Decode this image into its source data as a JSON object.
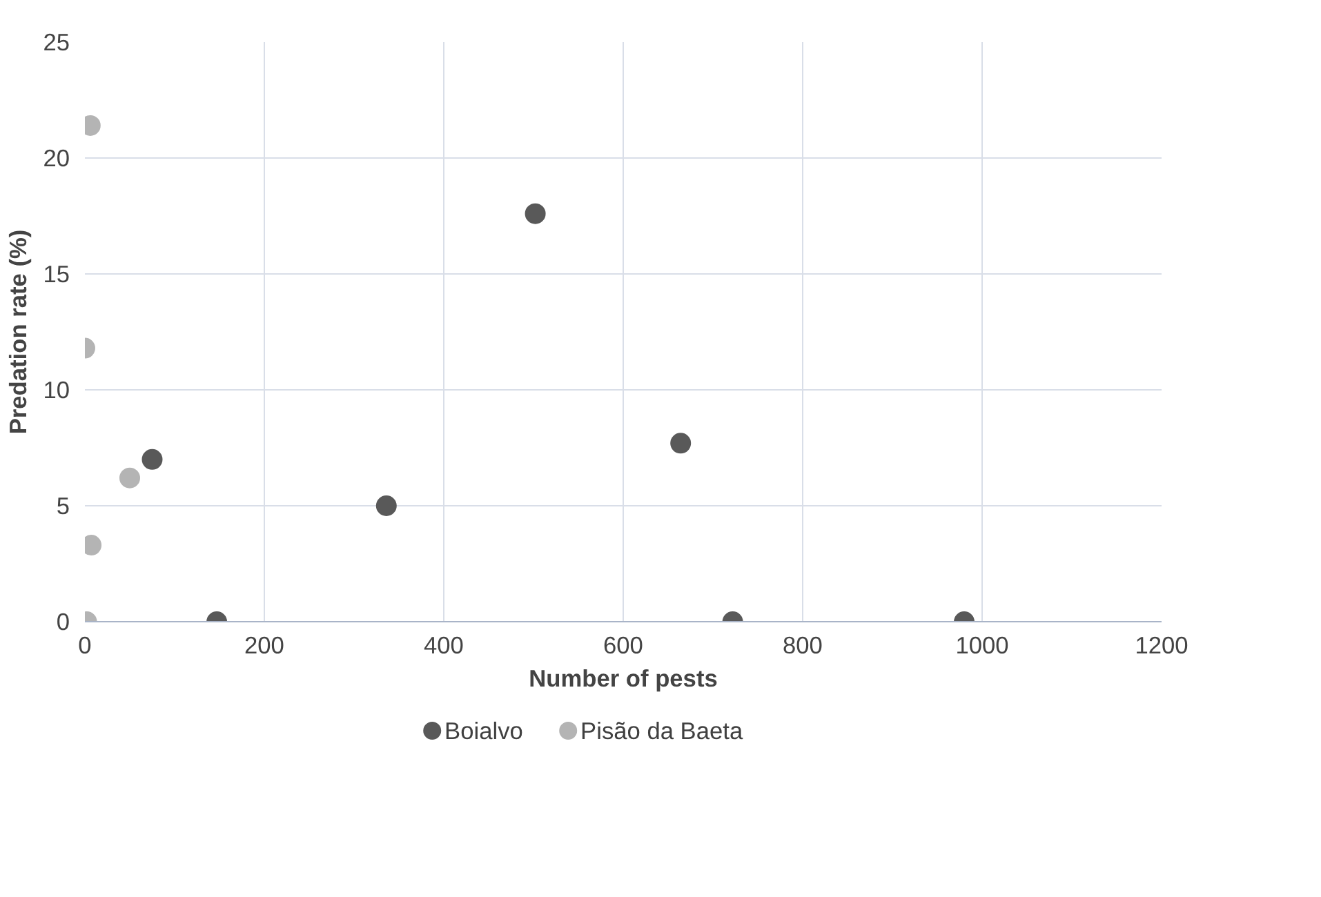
{
  "chart_data": {
    "type": "scatter",
    "xlabel": "Number of pests",
    "ylabel": "Predation rate (%)",
    "xlim": [
      0,
      1200
    ],
    "xticks": [
      0,
      200,
      400,
      600,
      800,
      1000,
      1200
    ],
    "ylim": [
      0,
      25
    ],
    "yticks": [
      0,
      5,
      10,
      15,
      20,
      25
    ],
    "grid": true,
    "legend": "bottom",
    "marker": "circle",
    "series": [
      {
        "name": "Boialvo",
        "color": "#595959",
        "x": [
          75,
          147,
          336,
          502,
          664,
          722,
          980
        ],
        "values": [
          7,
          0,
          5,
          17.6,
          7.7,
          0,
          0
        ]
      },
      {
        "name": "Pisão da Baeta",
        "color": "#b4b4b4",
        "x": [
          6,
          0,
          50,
          7,
          2
        ],
        "values": [
          21.4,
          11.8,
          6.2,
          3.3,
          0
        ]
      }
    ]
  }
}
